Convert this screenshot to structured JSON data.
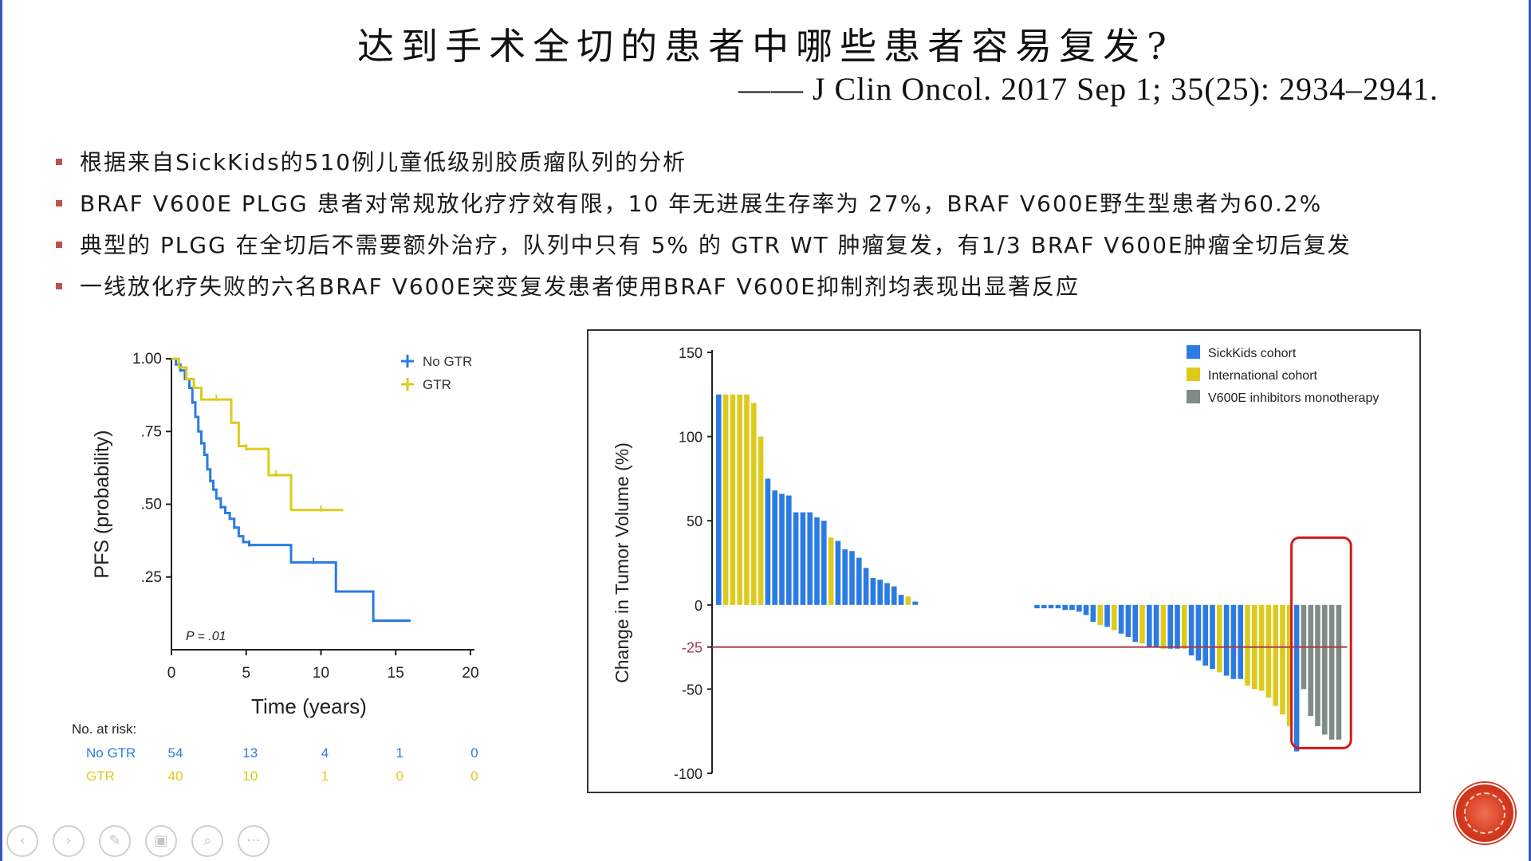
{
  "title": "达到手术全切的患者中哪些患者容易复发?",
  "citation": "—— J Clin Oncol. 2017 Sep 1; 35(25): 2934–2941.",
  "bullets": [
    "根据来自SickKids的510例儿童低级别胶质瘤队列的分析",
    "BRAF V600E PLGG 患者对常规放化疗疗效有限，10 年无进展生存率为 27%，BRAF V600E野生型患者为60.2%",
    "典型的 PLGG 在全切后不需要额外治疗，队列中只有 5% 的 GTR WT 肿瘤复发，有1/3 BRAF V600E肿瘤全切后复发",
    "一线放化疗失败的六名BRAF V600E突变复发患者使用BRAF V600E抑制剂均表现出显著反应"
  ],
  "colors": {
    "blue": "#2b7be3",
    "yellow": "#dccb1d",
    "gray": "#7f8c86",
    "red_line": "#a63a4a",
    "highlight_box": "#d21a1a",
    "bullet_mark": "#c0504d"
  },
  "nav_controls": [
    {
      "name": "prev",
      "icon": "chevron-left-icon",
      "glyph": "‹"
    },
    {
      "name": "next",
      "icon": "chevron-right-icon",
      "glyph": "›"
    },
    {
      "name": "pen",
      "icon": "pen-icon",
      "glyph": "✎"
    },
    {
      "name": "slides",
      "icon": "slides-icon",
      "glyph": "▣"
    },
    {
      "name": "zoom",
      "icon": "zoom-icon",
      "glyph": "⌕"
    },
    {
      "name": "more",
      "icon": "more-icon",
      "glyph": "···"
    }
  ],
  "chart_data": [
    {
      "type": "line",
      "step": true,
      "ylabel": "PFS (probability)",
      "xlabel": "Time (years)",
      "xlim": [
        0,
        20
      ],
      "ylim": [
        0,
        1
      ],
      "xticks": [
        "0",
        "5",
        "10",
        "15",
        "20"
      ],
      "yticks": [
        "1.00",
        ".75",
        ".50",
        ".25"
      ],
      "yticks_values": [
        1.0,
        0.75,
        0.5,
        0.25
      ],
      "annotation": "P = .01",
      "legend": [
        "No GTR",
        "GTR"
      ],
      "legend_position": "top-right",
      "series": [
        {
          "name": "No GTR",
          "color": "#2b7be3",
          "x": [
            0,
            0.3,
            0.6,
            0.9,
            1.2,
            1.4,
            1.6,
            1.8,
            2.0,
            2.2,
            2.4,
            2.6,
            2.8,
            3.0,
            3.3,
            3.6,
            3.9,
            4.2,
            4.5,
            4.8,
            5.2,
            6.0,
            8.0,
            9.5,
            11.0,
            12.5,
            13.5,
            14.5,
            16.0
          ],
          "y": [
            1.0,
            0.98,
            0.96,
            0.93,
            0.9,
            0.85,
            0.8,
            0.75,
            0.71,
            0.67,
            0.62,
            0.58,
            0.55,
            0.52,
            0.49,
            0.47,
            0.45,
            0.42,
            0.39,
            0.37,
            0.36,
            0.36,
            0.3,
            0.3,
            0.2,
            0.2,
            0.1,
            0.1,
            0.1
          ]
        },
        {
          "name": "GTR",
          "color": "#dccb1d",
          "x": [
            0,
            0.5,
            1.0,
            1.5,
            2.0,
            3.0,
            4.0,
            4.5,
            5.0,
            6.0,
            6.5,
            7.0,
            8.0,
            9.0,
            10.0,
            11.5
          ],
          "y": [
            1.0,
            0.97,
            0.93,
            0.9,
            0.86,
            0.86,
            0.78,
            0.7,
            0.69,
            0.69,
            0.6,
            0.6,
            0.48,
            0.48,
            0.48,
            0.48
          ]
        }
      ],
      "risk_table": {
        "title": "No. at risk:",
        "rows": [
          {
            "label": "No GTR",
            "values": [
              "54",
              "13",
              "4",
              "1",
              "0"
            ],
            "color": "#2b7be3"
          },
          {
            "label": "GTR",
            "values": [
              "40",
              "10",
              "1",
              "0",
              "0"
            ],
            "color": "#dccb1d"
          }
        ]
      }
    },
    {
      "type": "bar",
      "ylabel": "Change in Tumor Volume (%)",
      "ylim": [
        -100,
        150
      ],
      "yticks": [
        "150",
        "100",
        "50",
        "0",
        "-25",
        "-50",
        "-100"
      ],
      "yticks_values": [
        150,
        100,
        50,
        0,
        -25,
        -50,
        -100
      ],
      "reference_line": -25,
      "legend_position": "top-right",
      "legend": [
        {
          "label": "SickKids cohort",
          "color": "#2b7be3"
        },
        {
          "label": "International cohort",
          "color": "#dccb1d"
        },
        {
          "label": "V600E inhibitors monotherapy",
          "color": "#7f8c86"
        }
      ],
      "highlight": "V600E inhibitors monotherapy",
      "bars": [
        {
          "v": 125,
          "c": "b"
        },
        {
          "v": 125,
          "c": "y"
        },
        {
          "v": 125,
          "c": "y"
        },
        {
          "v": 125,
          "c": "y"
        },
        {
          "v": 125,
          "c": "y"
        },
        {
          "v": 120,
          "c": "y"
        },
        {
          "v": 100,
          "c": "y"
        },
        {
          "v": 75,
          "c": "b"
        },
        {
          "v": 68,
          "c": "b"
        },
        {
          "v": 66,
          "c": "b"
        },
        {
          "v": 65,
          "c": "b"
        },
        {
          "v": 55,
          "c": "b"
        },
        {
          "v": 55,
          "c": "b"
        },
        {
          "v": 55,
          "c": "b"
        },
        {
          "v": 52,
          "c": "b"
        },
        {
          "v": 50,
          "c": "b"
        },
        {
          "v": 40,
          "c": "y"
        },
        {
          "v": 38,
          "c": "b"
        },
        {
          "v": 33,
          "c": "b"
        },
        {
          "v": 32,
          "c": "b"
        },
        {
          "v": 28,
          "c": "b"
        },
        {
          "v": 22,
          "c": "b"
        },
        {
          "v": 16,
          "c": "b"
        },
        {
          "v": 15,
          "c": "b"
        },
        {
          "v": 13,
          "c": "b"
        },
        {
          "v": 11,
          "c": "b"
        },
        {
          "v": 6,
          "c": "b"
        },
        {
          "v": 5,
          "c": "y"
        },
        {
          "v": 2,
          "c": "b"
        },
        {
          "v": -2,
          "c": "b",
          "gap": true
        },
        {
          "v": -2,
          "c": "b"
        },
        {
          "v": -2,
          "c": "b"
        },
        {
          "v": -2,
          "c": "b"
        },
        {
          "v": -3,
          "c": "b"
        },
        {
          "v": -3,
          "c": "b"
        },
        {
          "v": -4,
          "c": "b"
        },
        {
          "v": -6,
          "c": "b"
        },
        {
          "v": -10,
          "c": "b"
        },
        {
          "v": -12,
          "c": "y"
        },
        {
          "v": -13,
          "c": "b"
        },
        {
          "v": -15,
          "c": "y"
        },
        {
          "v": -17,
          "c": "b"
        },
        {
          "v": -19,
          "c": "b"
        },
        {
          "v": -22,
          "c": "b"
        },
        {
          "v": -23,
          "c": "y"
        },
        {
          "v": -25,
          "c": "b"
        },
        {
          "v": -25,
          "c": "b"
        },
        {
          "v": -26,
          "c": "y"
        },
        {
          "v": -26,
          "c": "b"
        },
        {
          "v": -26,
          "c": "b"
        },
        {
          "v": -26,
          "c": "y"
        },
        {
          "v": -30,
          "c": "b"
        },
        {
          "v": -33,
          "c": "b"
        },
        {
          "v": -36,
          "c": "b"
        },
        {
          "v": -38,
          "c": "b"
        },
        {
          "v": -40,
          "c": "y"
        },
        {
          "v": -42,
          "c": "b"
        },
        {
          "v": -44,
          "c": "b"
        },
        {
          "v": -44,
          "c": "b"
        },
        {
          "v": -48,
          "c": "y"
        },
        {
          "v": -50,
          "c": "y"
        },
        {
          "v": -51,
          "c": "y"
        },
        {
          "v": -55,
          "c": "y"
        },
        {
          "v": -60,
          "c": "y"
        },
        {
          "v": -65,
          "c": "y"
        },
        {
          "v": -72,
          "c": "y"
        },
        {
          "v": -87,
          "c": "b"
        },
        {
          "v": -50,
          "c": "g"
        },
        {
          "v": -66,
          "c": "g"
        },
        {
          "v": -72,
          "c": "g"
        },
        {
          "v": -77,
          "c": "g"
        },
        {
          "v": -80,
          "c": "g"
        },
        {
          "v": -80,
          "c": "g"
        }
      ]
    }
  ]
}
